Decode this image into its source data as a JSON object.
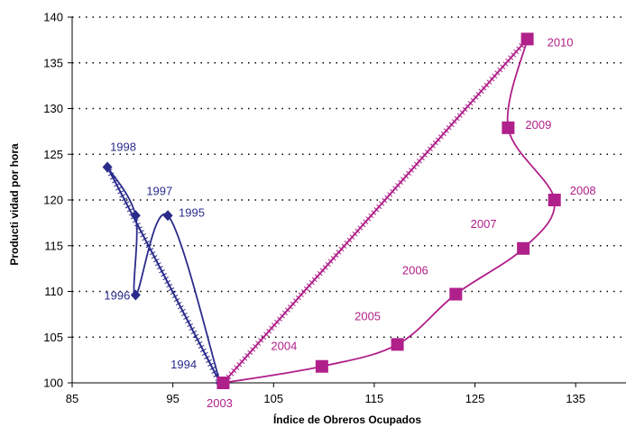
{
  "chart_data": {
    "type": "scatter",
    "title": "",
    "xlabel": "Índice de Obreros Ocupados",
    "ylabel": "Producti vidad por hora",
    "xlim": [
      85,
      140
    ],
    "ylim": [
      100,
      140
    ],
    "x_ticks": [
      "85",
      "95",
      "105",
      "115",
      "125",
      "135"
    ],
    "y_ticks": [
      "100",
      "105",
      "110",
      "115",
      "120",
      "125",
      "130",
      "135",
      "140"
    ],
    "grid": "horizontal dotted",
    "legend": "none",
    "series": [
      {
        "color": "#2b2b8c",
        "marker": "diamond",
        "points": [
          {
            "label": "1994",
            "x": 99.7,
            "y": 100.0
          },
          {
            "label": "1995",
            "x": 94.5,
            "y": 118.3
          },
          {
            "label": "1996",
            "x": 91.3,
            "y": 109.6
          },
          {
            "label": "1997",
            "x": 91.3,
            "y": 118.3
          },
          {
            "label": "1998",
            "x": 88.5,
            "y": 123.6
          }
        ]
      },
      {
        "color": "#b0208a",
        "marker": "square",
        "points": [
          {
            "label": "2003",
            "x": 100.0,
            "y": 100.0
          },
          {
            "label": "2004",
            "x": 109.8,
            "y": 101.8
          },
          {
            "label": "2005",
            "x": 117.3,
            "y": 104.2
          },
          {
            "label": "2006",
            "x": 123.1,
            "y": 109.7
          },
          {
            "label": "2007",
            "x": 129.8,
            "y": 114.7
          },
          {
            "label": "2008",
            "x": 132.9,
            "y": 120.0
          },
          {
            "label": "2009",
            "x": 128.3,
            "y": 127.9
          },
          {
            "label": "2010",
            "x": 130.2,
            "y": 137.6
          }
        ]
      }
    ],
    "trend_lines": [
      {
        "color": "#2b2b8c",
        "from": [
          88.5,
          123.6
        ],
        "to": [
          99.7,
          100.0
        ]
      },
      {
        "color": "#b0208a",
        "from": [
          100.0,
          100.0
        ],
        "to": [
          130.2,
          137.6
        ]
      }
    ]
  }
}
